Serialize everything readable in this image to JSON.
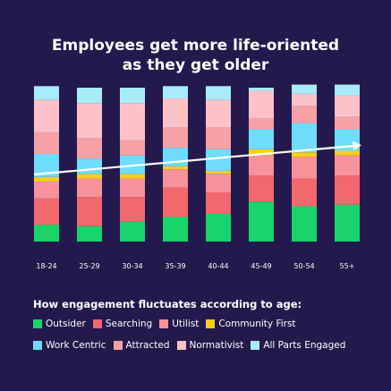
{
  "chart_data": {
    "type": "bar",
    "stacked": true,
    "normalized": true,
    "title_lines": [
      "Employees get more life-oriented",
      "as they get older"
    ],
    "categories": [
      "18-24",
      "25-29",
      "30-34",
      "35-39",
      "40-44",
      "45-49",
      "50-54",
      "55+"
    ],
    "ylim": [
      0,
      100
    ],
    "grid": false,
    "trend_arrow": true,
    "legend_title": "How engagement fluctuates according to age:",
    "legend_placement": "bottom",
    "series": [
      {
        "name": "Outsider",
        "color": "#19d36b",
        "values": [
          11,
          10,
          13,
          16,
          18,
          26,
          23,
          24
        ]
      },
      {
        "name": "Searching",
        "color": "#f2686d",
        "values": [
          17,
          19,
          16,
          19,
          14,
          17,
          18,
          19
        ]
      },
      {
        "name": "Utilist",
        "color": "#f7929a",
        "values": [
          11,
          12,
          12,
          12,
          12,
          13,
          14,
          13
        ]
      },
      {
        "name": "Community First",
        "color": "#f5cf1e",
        "values": [
          3,
          3,
          3,
          2,
          2,
          4,
          3,
          3
        ]
      },
      {
        "name": "Work Centric",
        "color": "#6fdcfb",
        "values": [
          15,
          10,
          12,
          12,
          14,
          13,
          19,
          14
        ]
      },
      {
        "name": "Attracted",
        "color": "#f7a0a5",
        "values": [
          14,
          13,
          10,
          13,
          14,
          7,
          11,
          8
        ]
      },
      {
        "name": "Normativist",
        "color": "#fcc2c8",
        "values": [
          21,
          23,
          24,
          19,
          18,
          18,
          8,
          14
        ]
      },
      {
        "name": "All Parts Engaged",
        "color": "#a8ecfc",
        "values": [
          9,
          10,
          10,
          8,
          9,
          2,
          6,
          7
        ]
      }
    ]
  }
}
